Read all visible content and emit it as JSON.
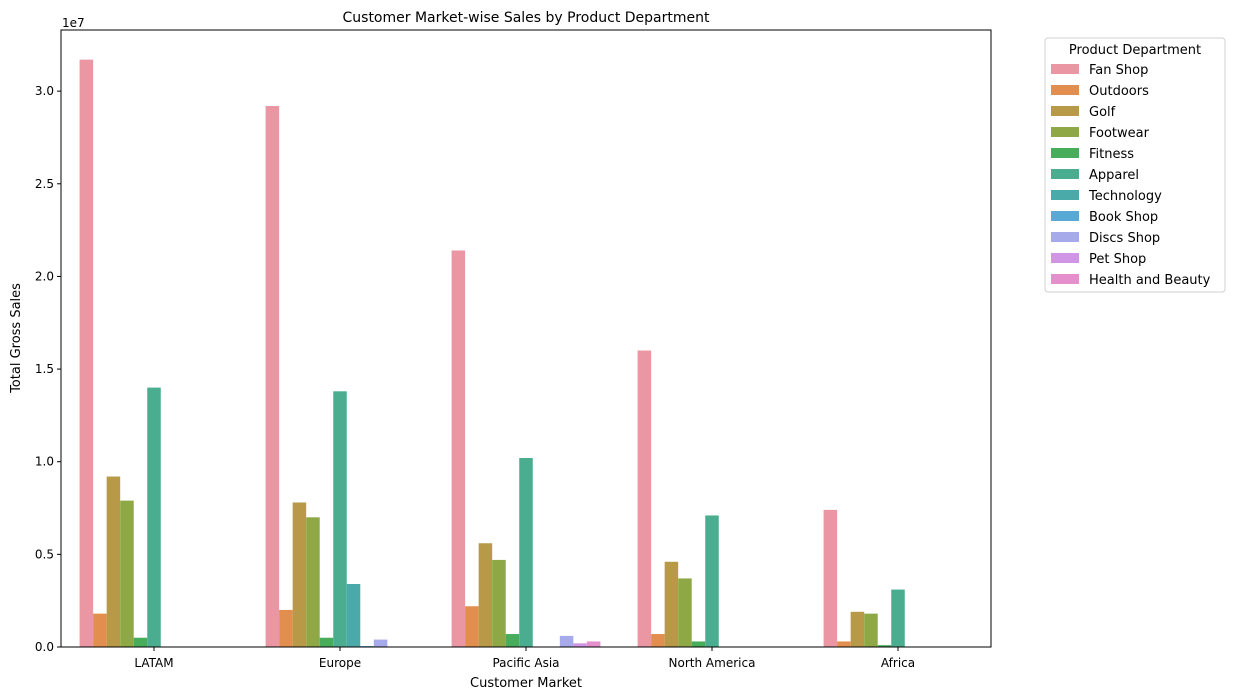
{
  "chart_data": {
    "type": "bar",
    "title": "Customer Market-wise Sales by Product Department",
    "xlabel": "Customer Market",
    "ylabel": "Total Gross Sales",
    "y_offset_label": "1e7",
    "ylim": [
      0,
      3.33
    ],
    "y_ticks": [
      0.0,
      0.5,
      1.0,
      1.5,
      2.0,
      2.5,
      3.0
    ],
    "y_tick_labels": [
      "0.0",
      "0.5",
      "1.0",
      "1.5",
      "2.0",
      "2.5",
      "3.0"
    ],
    "categories": [
      "LATAM",
      "Europe",
      "Pacific Asia",
      "North America",
      "Africa"
    ],
    "grid": false,
    "legend": {
      "title": "Product Department",
      "placement": "outside-top-right"
    },
    "series": [
      {
        "name": "Fan Shop",
        "color": "#ea96a3",
        "values": [
          3.17,
          2.92,
          2.14,
          1.6,
          0.74
        ]
      },
      {
        "name": "Outdoors",
        "color": "#e28e4f",
        "values": [
          0.18,
          0.2,
          0.22,
          0.07,
          0.03
        ]
      },
      {
        "name": "Golf",
        "color": "#b89947",
        "values": [
          0.92,
          0.78,
          0.56,
          0.46,
          0.19
        ]
      },
      {
        "name": "Footwear",
        "color": "#8ea846",
        "values": [
          0.79,
          0.7,
          0.47,
          0.37,
          0.18
        ]
      },
      {
        "name": "Fitness",
        "color": "#48ad5a",
        "values": [
          0.05,
          0.05,
          0.07,
          0.03,
          0.01
        ]
      },
      {
        "name": "Apparel",
        "color": "#4bad8f",
        "values": [
          1.4,
          1.38,
          1.02,
          0.71,
          0.31
        ]
      },
      {
        "name": "Technology",
        "color": "#4aaaa9",
        "values": [
          0,
          0.34,
          0,
          0,
          0
        ]
      },
      {
        "name": "Book Shop",
        "color": "#58a9d3",
        "values": [
          0,
          0.005,
          0,
          0,
          0
        ]
      },
      {
        "name": "Discs Shop",
        "color": "#a6aaea",
        "values": [
          0,
          0.04,
          0.06,
          0,
          0
        ]
      },
      {
        "name": "Pet Shop",
        "color": "#d195e5",
        "values": [
          0,
          0,
          0.02,
          0,
          0
        ]
      },
      {
        "name": "Health and Beauty",
        "color": "#e58fcc",
        "values": [
          0,
          0,
          0.03,
          0,
          0
        ]
      }
    ]
  }
}
